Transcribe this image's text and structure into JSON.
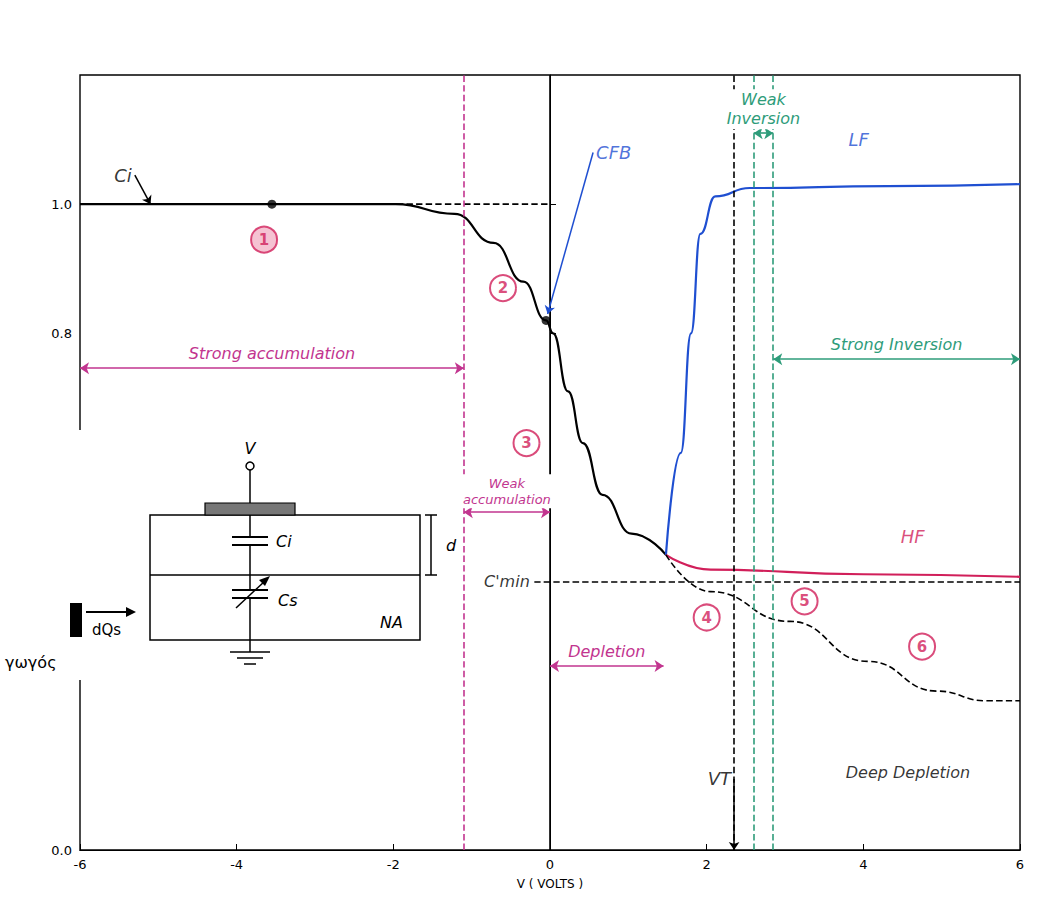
{
  "chart_data": {
    "type": "line",
    "xlabel": "V ( VOLTS )",
    "xlim": [
      -6,
      6
    ],
    "xticks": [
      -6,
      -4,
      -2,
      0,
      2,
      4,
      6
    ],
    "ylim": [
      0,
      1.2
    ],
    "yticks": [
      {
        "value": 0,
        "label": "0.0"
      },
      {
        "value": 0.8,
        "label": "0.8"
      },
      {
        "value": 1,
        "label": "1.0"
      }
    ],
    "grid": false,
    "series": [
      {
        "color": "#000000",
        "line_style": "solid",
        "x": [
          -6,
          -1.97,
          -1.22,
          -0.72,
          -0.34,
          -0.05,
          0.04,
          0.23,
          0.42,
          0.67,
          1.04,
          1.48
        ],
        "values": [
          1.0,
          1.0,
          0.985,
          0.94,
          0.88,
          0.82,
          0.8,
          0.71,
          0.63,
          0.55,
          0.49,
          0.457
        ]
      },
      {
        "color": "#1f4fd1",
        "line_style": "solid",
        "x": [
          1.48,
          1.67,
          1.8,
          1.92,
          2.11,
          2.55,
          4.31,
          6
        ],
        "values": [
          0.457,
          0.615,
          0.8,
          0.954,
          1.012,
          1.025,
          1.028,
          1.031
        ]
      },
      {
        "color": "#d11f5a",
        "line_style": "solid",
        "x": [
          1.48,
          2.05,
          4,
          6
        ],
        "values": [
          0.457,
          0.434,
          0.427,
          0.423
        ]
      },
      {
        "color": "#000000",
        "line_style": "dashed",
        "x": [
          1.48,
          2.05,
          3.06,
          4.06,
          4.94,
          5.57,
          6
        ],
        "values": [
          0.457,
          0.4,
          0.354,
          0.292,
          0.246,
          0.231,
          0.231
        ]
      },
      {
        "color": "#000000",
        "line_style": "dashed",
        "x": [
          -6,
          0
        ],
        "values": [
          1.0,
          1.0
        ]
      },
      {
        "color": "#000000",
        "line_style": "dashed",
        "x": [
          -0.2,
          6
        ],
        "values": [
          0.415,
          0.415
        ]
      }
    ],
    "vlines": [
      {
        "x": -1.1,
        "color": "#c2358f",
        "line_style": "dashed"
      },
      {
        "x": 0,
        "color": "#000000",
        "line_style": "solid"
      },
      {
        "x": 2.35,
        "color": "#000000",
        "line_style": "dashed"
      },
      {
        "x": 2.6,
        "color": "#2e9c7a",
        "line_style": "dashed"
      },
      {
        "x": 2.85,
        "color": "#2e9c7a",
        "line_style": "dashed"
      }
    ],
    "regions": [
      {
        "text": "Strong accumulation",
        "from": -6,
        "to": -1.1,
        "y": 0.746,
        "color": "#c2358f"
      },
      {
        "text": "Weak accumulation",
        "from": -1.1,
        "to": 0,
        "y": 0.523,
        "color": "#c2358f"
      },
      {
        "text": "Depletion",
        "from": 0,
        "to": 1.45,
        "y": 0.285,
        "color": "#c2358f"
      },
      {
        "text": "Weak Inversion",
        "from": 2.6,
        "to": 2.85,
        "y": 1.11,
        "color": "#2e9c7a"
      },
      {
        "text": "Strong Inversion",
        "from": 2.85,
        "to": 6,
        "y": 0.76,
        "color": "#2e9c7a"
      }
    ],
    "markers": [
      {
        "x": -3.55,
        "y": 1.0,
        "color": "#000000"
      },
      {
        "x": -0.05,
        "y": 0.82,
        "color": "#000000"
      }
    ],
    "circled": [
      {
        "text": "1",
        "x": -3.65,
        "y": 0.945,
        "marker": "filled_circle",
        "color": "#d11f5a"
      },
      {
        "text": "2",
        "x": -0.6,
        "y": 0.87,
        "marker": "circle",
        "color": "#d11f5a"
      },
      {
        "text": "3",
        "x": -0.3,
        "y": 0.63,
        "marker": "circle",
        "color": "#d11f5a"
      },
      {
        "text": "4",
        "x": 2.0,
        "y": 0.36,
        "marker": "circle",
        "color": "#d11f5a"
      },
      {
        "text": "5",
        "x": 3.25,
        "y": 0.385,
        "marker": "circle",
        "color": "#d11f5a"
      },
      {
        "text": "6",
        "x": 4.75,
        "y": 0.315,
        "marker": "circle",
        "color": "#d11f5a"
      }
    ],
    "annotations": [
      {
        "text": "Ci",
        "x": -5.3,
        "y": 1.045,
        "color": "#000000",
        "target": [
          -5.1,
          1.0
        ]
      },
      {
        "text": "CFB",
        "x": 0.55,
        "y": 1.08,
        "color": "#1f4fd1",
        "target": [
          -0.03,
          0.83
        ]
      },
      {
        "text": "LF",
        "x": 3.94,
        "y": 1.1,
        "color": "#1f4fd1"
      },
      {
        "text": "HF",
        "x": 4.63,
        "y": 0.485,
        "color": "#d11f5a"
      },
      {
        "text": "C'min",
        "x": -0.55,
        "y": 0.415,
        "color": "#000000"
      },
      {
        "text": "VT",
        "x": 2.35,
        "y": 0.11,
        "color": "#000000",
        "target": [
          2.35,
          0
        ]
      },
      {
        "text": "Deep Depletion",
        "x": 4.57,
        "y": 0.12,
        "color": "#000000"
      }
    ],
    "inset": {
      "terminal": "V",
      "oxide_capacitance": "Ci",
      "thickness": "d",
      "semiconductor_capacitance": "Cs",
      "doping": "NA",
      "charge": "dQs",
      "fragment": "γωγός"
    }
  }
}
